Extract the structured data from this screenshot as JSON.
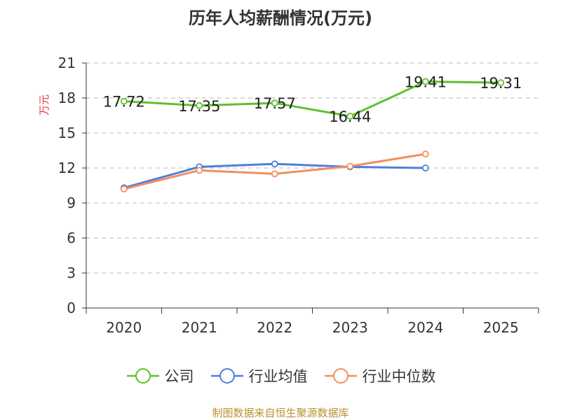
{
  "title": "历年人均薪酬情况(万元)",
  "source_note": "制图数据来自恒生聚源数据库",
  "colors": {
    "company": "#5cc12d",
    "industry_avg": "#4f7fd9",
    "industry_median": "#f38e5f",
    "grid": "#c8c8c8",
    "axis": "#333333",
    "ylabel": "#e23c3c",
    "source": "#b8912f"
  },
  "chart_data": {
    "type": "line",
    "title": "历年人均薪酬情况(万元)",
    "xlabel": "",
    "ylabel": "万元",
    "categories": [
      "2020",
      "2021",
      "2022",
      "2023",
      "2024",
      "2025"
    ],
    "ylim": [
      0,
      21
    ],
    "yticks": [
      0,
      3,
      6,
      9,
      12,
      15,
      18,
      21
    ],
    "grid": "horizontal dashed",
    "legend_position": "bottom",
    "series": [
      {
        "name": "公司",
        "key": "company",
        "values": [
          17.72,
          17.35,
          17.57,
          16.44,
          19.41,
          19.31
        ],
        "labels": [
          "17.72",
          "17.35",
          "17.57",
          "16.44",
          "19.41",
          "19.31"
        ]
      },
      {
        "name": "行业均值",
        "key": "industry_avg",
        "values": [
          10.3,
          12.1,
          12.35,
          12.1,
          12.0,
          null
        ]
      },
      {
        "name": "行业中位数",
        "key": "industry_median",
        "values": [
          10.2,
          11.8,
          11.5,
          12.15,
          13.2,
          null
        ]
      }
    ]
  }
}
